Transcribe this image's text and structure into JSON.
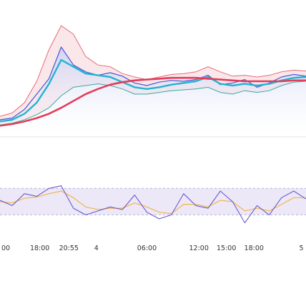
{
  "colors": {
    "price_line": "#4a55d8",
    "price_fill_top": "#c9d0f5",
    "ma_fast": "#22b4cf",
    "ma_slow": "#e23d5a",
    "bollinger_band": "#e76a7a",
    "bollinger_fill": "#f6d4d9",
    "bollinger_lower": "#3aa89a",
    "rsi_line": "#6a5acd",
    "rsi_signal": "#f2b54a",
    "rsi_band_fill": "#ece8f8",
    "rsi_band_border": "#b8b0d8",
    "tick_text": "#333333"
  },
  "chart_data": [
    {
      "type": "line",
      "panel": "price",
      "x": [
        0,
        4,
        8,
        12,
        16,
        20,
        24,
        28,
        32,
        36,
        40,
        44,
        48,
        52,
        56,
        60,
        64,
        68,
        72,
        76,
        80,
        84,
        88,
        92,
        96,
        100
      ],
      "series": [
        {
          "role": "price",
          "values": [
            10,
            12,
            22,
            40,
            58,
            95,
            74,
            66,
            62,
            65,
            61,
            53,
            50,
            54,
            56,
            55,
            57,
            62,
            51,
            53,
            57,
            48,
            53,
            60,
            63,
            61
          ]
        },
        {
          "role": "fast-ma",
          "values": [
            8,
            10,
            17,
            30,
            52,
            80,
            72,
            64,
            62,
            60,
            54,
            48,
            46,
            48,
            51,
            53,
            55,
            60,
            52,
            50,
            52,
            50,
            52,
            56,
            59,
            60
          ]
        },
        {
          "role": "slow-ma",
          "values": [
            3,
            5,
            8,
            12,
            17,
            24,
            32,
            40,
            46,
            51,
            54,
            56,
            57,
            58,
            59,
            59,
            59,
            58,
            57,
            56,
            55,
            55,
            55,
            55,
            56,
            56
          ]
        },
        {
          "role": "bollinger-upper",
          "values": [
            14,
            18,
            30,
            55,
            92,
            120,
            110,
            84,
            74,
            72,
            64,
            60,
            57,
            60,
            63,
            64,
            66,
            72,
            66,
            61,
            62,
            60,
            62,
            66,
            68,
            67
          ]
        },
        {
          "role": "bollinger-lower",
          "values": [
            4,
            6,
            10,
            16,
            24,
            38,
            48,
            50,
            52,
            50,
            46,
            40,
            40,
            42,
            44,
            45,
            46,
            48,
            42,
            40,
            44,
            42,
            44,
            50,
            54,
            55
          ]
        }
      ]
    },
    {
      "type": "line",
      "panel": "oscillator",
      "x": [
        0,
        4,
        8,
        12,
        16,
        20,
        24,
        28,
        32,
        36,
        40,
        44,
        48,
        52,
        56,
        60,
        64,
        68,
        72,
        76,
        80,
        84,
        88,
        92,
        96,
        100
      ],
      "band": [
        30,
        70
      ],
      "series": [
        {
          "role": "oscillator",
          "values": [
            52,
            44,
            62,
            58,
            70,
            74,
            40,
            30,
            36,
            42,
            38,
            60,
            34,
            24,
            30,
            62,
            44,
            40,
            66,
            50,
            18,
            44,
            30,
            56,
            66,
            54
          ]
        },
        {
          "role": "signal",
          "values": [
            50,
            48,
            55,
            57,
            62,
            66,
            56,
            42,
            38,
            40,
            40,
            48,
            42,
            34,
            32,
            46,
            46,
            42,
            52,
            50,
            36,
            40,
            36,
            46,
            56,
            56
          ]
        }
      ]
    }
  ],
  "x_ticks": [
    {
      "label": "00",
      "x": 0
    },
    {
      "label": "18:00",
      "x": 13
    },
    {
      "label": "20:55",
      "x": 22.5
    },
    {
      "label": "4",
      "x": 31.5
    },
    {
      "label": "06:00",
      "x": 48
    },
    {
      "label": "12:00",
      "x": 65
    },
    {
      "label": "15:00",
      "x": 74
    },
    {
      "label": "18:00",
      "x": 83
    },
    {
      "label": "5",
      "x": 98.5
    }
  ]
}
